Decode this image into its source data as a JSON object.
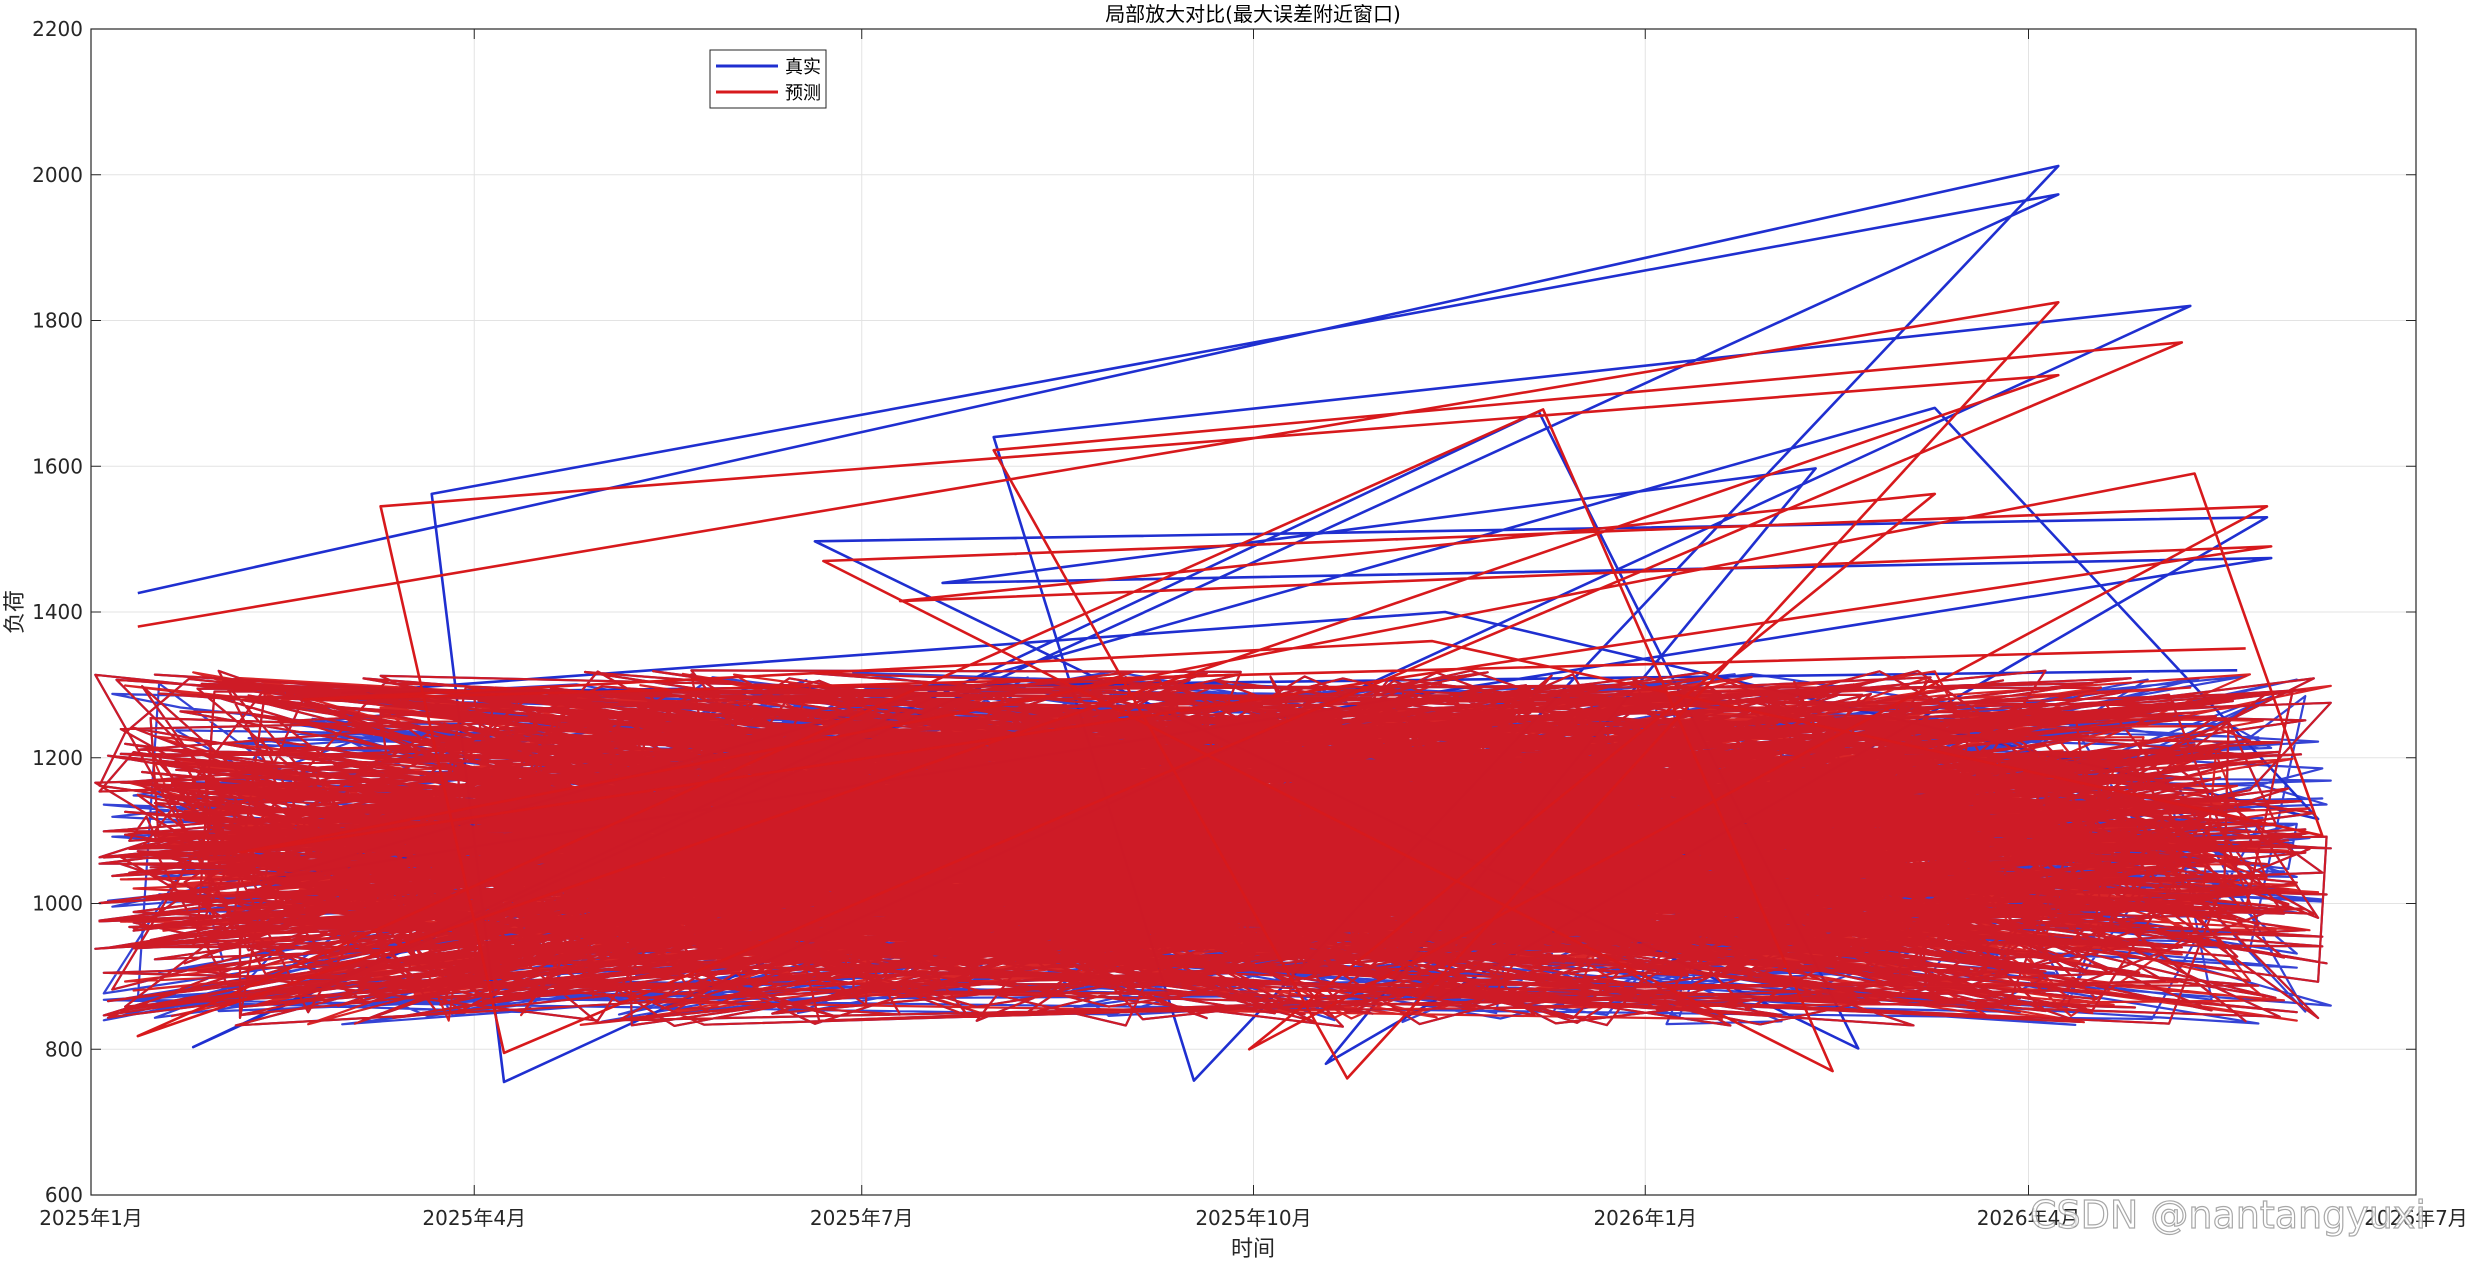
{
  "chart_data": {
    "type": "line",
    "title": "局部放大对比(最大误差附近窗口)",
    "xlabel": "时间",
    "ylabel": "负荷",
    "ylim": [
      600,
      2200
    ],
    "yticks": [
      600,
      800,
      1000,
      1200,
      1400,
      1600,
      1800,
      2000,
      2200
    ],
    "xlim": [
      "2025-01-01",
      "2026-07-01"
    ],
    "xticks": [
      {
        "date": "2025-01-01",
        "label": "2025年1月"
      },
      {
        "date": "2025-04-01",
        "label": "2025年4月"
      },
      {
        "date": "2025-07-01",
        "label": "2025年7月"
      },
      {
        "date": "2025-10-01",
        "label": "2025年10月"
      },
      {
        "date": "2026-01-01",
        "label": "2026年1月"
      },
      {
        "date": "2026-04-01",
        "label": "2026年4月"
      },
      {
        "date": "2026-07-01",
        "label": "2026年7月"
      }
    ],
    "grid": true,
    "legend_position": "top-left",
    "series": [
      {
        "name": "真实",
        "color": "#1f2fd0",
        "points": [
          [
            "2025-01-12",
            1426
          ],
          [
            "2026-04-08",
            2012
          ],
          [
            "2025-09-17",
            757
          ],
          [
            "2025-08-01",
            1640
          ],
          [
            "2026-05-09",
            1820
          ],
          [
            "2025-04-08",
            755
          ],
          [
            "2025-03-22",
            1562
          ],
          [
            "2026-04-08",
            1973
          ],
          [
            "2025-01-25",
            803
          ],
          [
            "2025-12-07",
            1675
          ],
          [
            "2026-02-20",
            801
          ],
          [
            "2025-06-20",
            1497
          ],
          [
            "2026-05-27",
            1530
          ],
          [
            "2025-10-18",
            780
          ],
          [
            "2026-02-10",
            1597
          ],
          [
            "2025-07-20",
            1440
          ],
          [
            "2026-05-28",
            1474
          ],
          [
            "2025-02-10",
            1031
          ],
          [
            "2026-03-10",
            1680
          ],
          [
            "2026-06-08",
            1116
          ],
          [
            "2025-11-15",
            1400
          ],
          [
            "2025-03-01",
            1289
          ],
          [
            "2026-05-20",
            1320
          ]
        ]
      },
      {
        "name": "预测",
        "color": "#d7191c",
        "points": [
          [
            "2025-01-12",
            1380
          ],
          [
            "2026-04-08",
            1825
          ],
          [
            "2025-10-23",
            760
          ],
          [
            "2025-08-01",
            1622
          ],
          [
            "2026-05-07",
            1770
          ],
          [
            "2025-04-08",
            795
          ],
          [
            "2025-03-10",
            1545
          ],
          [
            "2026-04-08",
            1725
          ],
          [
            "2025-01-12",
            818
          ],
          [
            "2025-12-08",
            1678
          ],
          [
            "2026-02-14",
            770
          ],
          [
            "2025-06-22",
            1470
          ],
          [
            "2026-05-27",
            1545
          ],
          [
            "2025-09-30",
            800
          ],
          [
            "2026-03-10",
            1562
          ],
          [
            "2025-07-10",
            1415
          ],
          [
            "2026-05-28",
            1490
          ],
          [
            "2025-02-05",
            1070
          ],
          [
            "2026-05-10",
            1590
          ],
          [
            "2026-06-09",
            1093
          ],
          [
            "2025-11-12",
            1360
          ],
          [
            "2025-02-20",
            1280
          ],
          [
            "2026-05-22",
            1350
          ]
        ]
      }
    ]
  },
  "watermark": "CSDN @nantangyuxi"
}
